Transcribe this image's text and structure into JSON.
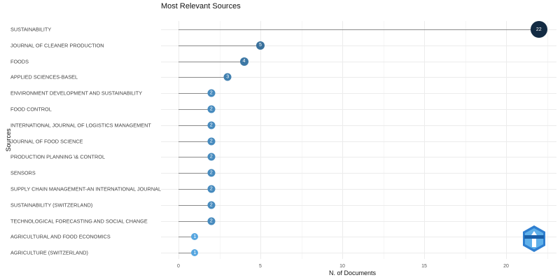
{
  "chart_data": {
    "type": "lollipop",
    "title": "Most Relevant Sources",
    "xlabel": "N. of Documents",
    "ylabel": "Sources",
    "xlim": [
      0,
      23
    ],
    "xticks": [
      0,
      5,
      10,
      15,
      20
    ],
    "grid": true,
    "legend": "none",
    "categories": [
      "SUSTAINABILITY",
      "JOURNAL OF CLEANER PRODUCTION",
      "FOODS",
      "APPLIED SCIENCES-BASEL",
      "ENVIRONMENT DEVELOPMENT AND SUSTAINABILITY",
      "FOOD CONTROL",
      "INTERNATIONAL JOURNAL OF LOGISTICS MANAGEMENT",
      "JOURNAL OF FOOD SCIENCE",
      "PRODUCTION PLANNING \\& CONTROL",
      "SENSORS",
      "SUPPLY CHAIN MANAGEMENT-AN INTERNATIONAL JOURNAL",
      "SUSTAINABILITY (SWITZERLAND)",
      "TECHNOLOGICAL FORECASTING AND SOCIAL CHANGE",
      "AGRICULTURAL AND FOOD ECONOMICS",
      "AGRICULTURE (SWITZERLAND)"
    ],
    "values": [
      22,
      5,
      4,
      3,
      2,
      2,
      2,
      2,
      2,
      2,
      2,
      2,
      2,
      1,
      1
    ],
    "colors": {
      "low": "#56a6e0",
      "high": "#132b43",
      "stem": "#8a8a8a"
    }
  }
}
